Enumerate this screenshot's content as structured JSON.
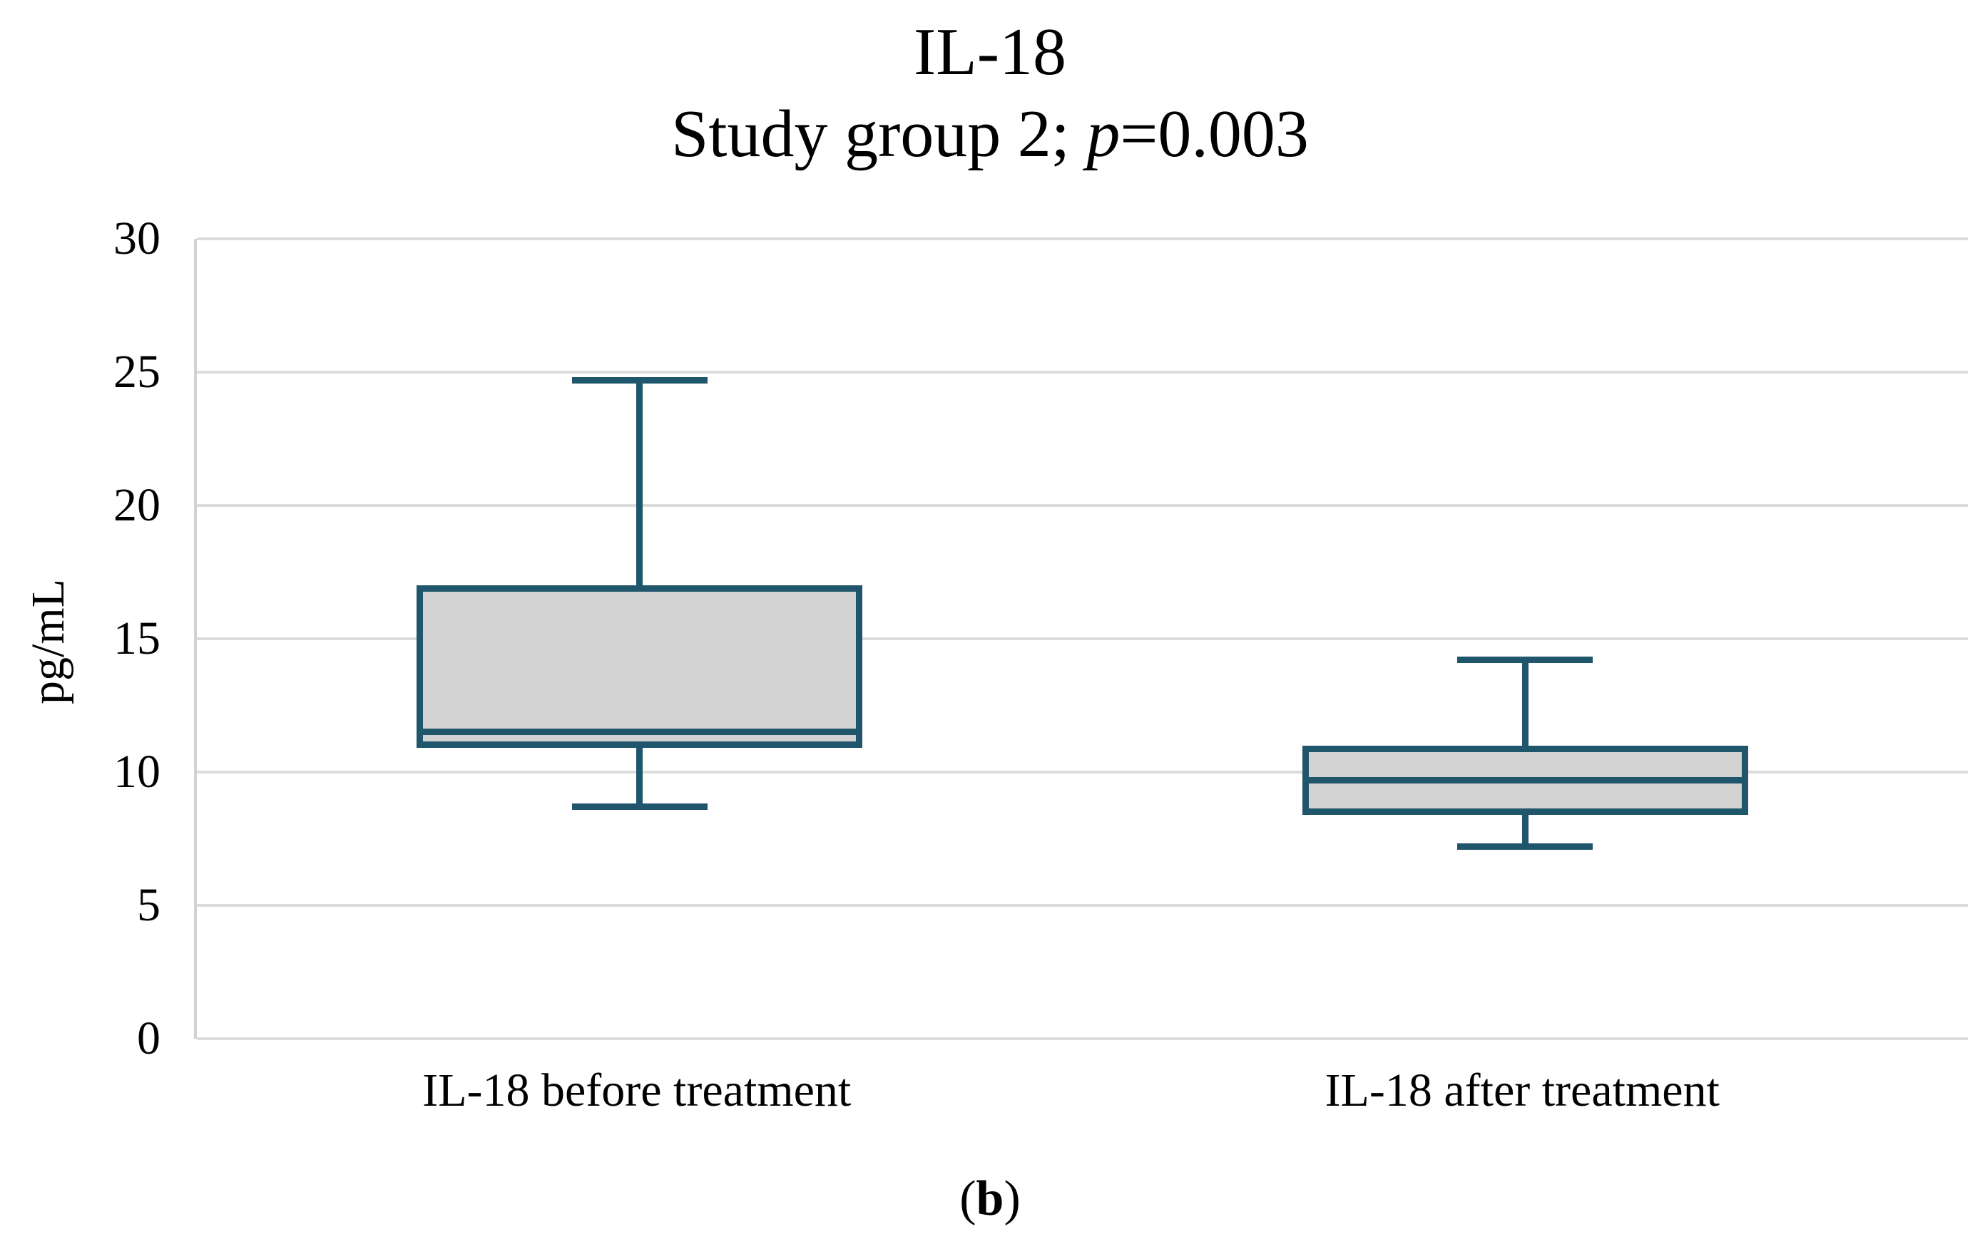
{
  "title": {
    "line1": "IL-18",
    "line2_prefix": "Study group 2; ",
    "line2_p": "p",
    "line2_suffix": "=0.003"
  },
  "caption": {
    "open": "(",
    "letter": "b",
    "close": ")"
  },
  "chart_data": {
    "type": "boxplot",
    "title": "IL-18",
    "subtitle": "Study group 2; p=0.003",
    "p_value": "0.003",
    "xlabel": "",
    "ylabel": "pg/mL",
    "ylim": [
      0,
      30
    ],
    "yticks": [
      0,
      5,
      10,
      15,
      20,
      25,
      30
    ],
    "grid": "horizontal",
    "legend": "none",
    "categories": [
      "IL-18 before treatment",
      "IL-18 after treatment"
    ],
    "series": [
      {
        "name": "IL-18 before treatment",
        "whisker_low": 8.7,
        "q1": 10.9,
        "median": 11.5,
        "q3": 17.0,
        "whisker_high": 24.7
      },
      {
        "name": "IL-18 after treatment",
        "whisker_low": 7.2,
        "q1": 8.4,
        "median": 9.7,
        "q3": 11.0,
        "whisker_high": 14.2
      }
    ],
    "colors": {
      "box_fill": "#d3d3d3",
      "box_border": "#20566b",
      "gridline": "#dcdcdc",
      "axis_line": "#d2d2d2",
      "text": "#000000"
    }
  }
}
